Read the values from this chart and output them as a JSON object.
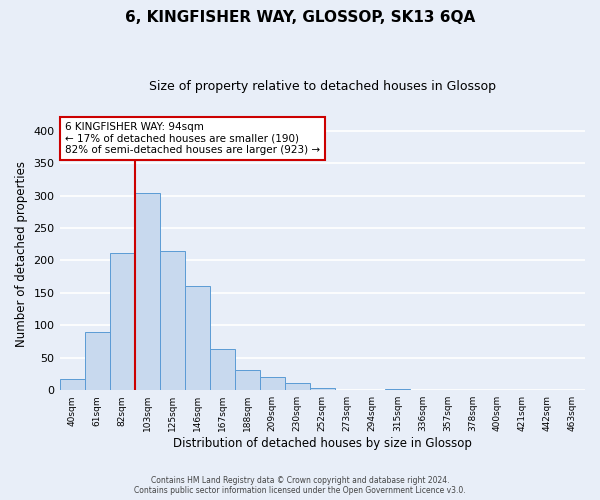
{
  "title": "6, KINGFISHER WAY, GLOSSOP, SK13 6QA",
  "subtitle": "Size of property relative to detached houses in Glossop",
  "xlabel": "Distribution of detached houses by size in Glossop",
  "ylabel": "Number of detached properties",
  "bar_labels": [
    "40sqm",
    "61sqm",
    "82sqm",
    "103sqm",
    "125sqm",
    "146sqm",
    "167sqm",
    "188sqm",
    "209sqm",
    "230sqm",
    "252sqm",
    "273sqm",
    "294sqm",
    "315sqm",
    "336sqm",
    "357sqm",
    "378sqm",
    "400sqm",
    "421sqm",
    "442sqm",
    "463sqm"
  ],
  "bar_values": [
    17,
    90,
    211,
    304,
    214,
    160,
    64,
    31,
    20,
    11,
    4,
    0,
    0,
    2,
    0,
    0,
    0,
    1,
    0,
    0,
    1
  ],
  "bar_color": "#c8d9ee",
  "bar_edge_color": "#5b9bd5",
  "vline_color": "#cc0000",
  "ylim": [
    0,
    420
  ],
  "yticks": [
    0,
    50,
    100,
    150,
    200,
    250,
    300,
    350,
    400
  ],
  "annotation_title": "6 KINGFISHER WAY: 94sqm",
  "annotation_line1": "← 17% of detached houses are smaller (190)",
  "annotation_line2": "82% of semi-detached houses are larger (923) →",
  "annotation_box_color": "#ffffff",
  "annotation_box_edge": "#cc0000",
  "footer_line1": "Contains HM Land Registry data © Crown copyright and database right 2024.",
  "footer_line2": "Contains public sector information licensed under the Open Government Licence v3.0.",
  "background_color": "#e8eef8",
  "grid_color": "#ffffff",
  "title_fontsize": 11,
  "subtitle_fontsize": 9,
  "xlabel_fontsize": 8.5,
  "ylabel_fontsize": 8.5,
  "vline_xindex": 2.5
}
